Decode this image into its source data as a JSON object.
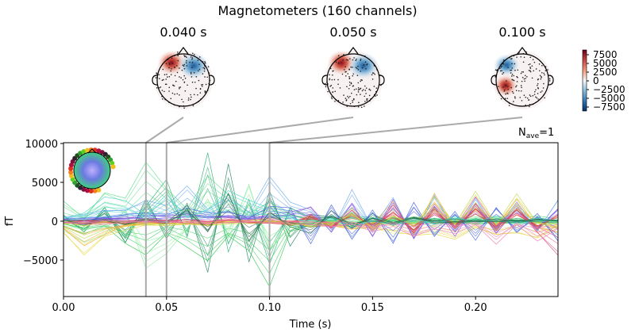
{
  "title": "Magnetometers (160 channels)",
  "topomaps": [
    {
      "time": 0.04,
      "label": "0.040 s",
      "pattern": "red-left-front, blue-right-front"
    },
    {
      "time": 0.05,
      "label": "0.050 s",
      "pattern": "red-left-front, blue-right-front"
    },
    {
      "time": 0.1,
      "label": "0.100 s",
      "pattern": "blue-left-front, red-left-middle"
    }
  ],
  "colorbar": {
    "ticks": [
      "7500",
      "5000",
      "2500",
      "0",
      "−2500",
      "−5000",
      "−7500"
    ],
    "colormap": "RdBu_r",
    "range": [
      -8500,
      8500
    ]
  },
  "nave_label": "N",
  "nave_sub": "ave",
  "nave_value": "=1",
  "chart_data": {
    "type": "line",
    "xlabel": "Time (s)",
    "ylabel": "fT",
    "xlim": [
      0,
      0.24
    ],
    "ylim": [
      -9700,
      10100
    ],
    "xticks": [
      {
        "v": 0,
        "label": "0.00"
      },
      {
        "v": 0.05,
        "label": "0.05"
      },
      {
        "v": 0.1,
        "label": "0.10"
      },
      {
        "v": 0.15,
        "label": "0.15"
      },
      {
        "v": 0.2,
        "label": "0.20"
      }
    ],
    "yticks": [
      {
        "v": 10000,
        "label": "10000"
      },
      {
        "v": 5000,
        "label": "5000"
      },
      {
        "v": 0,
        "label": "0"
      },
      {
        "v": -5000,
        "label": "−5000"
      }
    ],
    "markers": [
      0.04,
      0.05,
      0.1
    ],
    "x": [
      0,
      0.01,
      0.02,
      0.03,
      0.04,
      0.05,
      0.06,
      0.07,
      0.08,
      0.09,
      0.1,
      0.11,
      0.12,
      0.13,
      0.14,
      0.15,
      0.16,
      0.17,
      0.18,
      0.19,
      0.2,
      0.21,
      0.22,
      0.23,
      0.24
    ],
    "series": [
      {
        "color": "#5fe08a",
        "values": [
          2500,
          500,
          4000,
          3000,
          8000,
          4500,
          1500,
          6000,
          3500,
          1000,
          2500,
          800,
          300,
          200,
          600,
          400,
          300,
          500,
          300,
          200,
          400,
          600,
          300,
          500,
          200
        ]
      },
      {
        "color": "#2fb070",
        "values": [
          1000,
          -1500,
          2000,
          -3000,
          2000,
          5500,
          -2000,
          9000,
          -4000,
          3000,
          -6000,
          2000,
          500,
          -300,
          1000,
          -500,
          300,
          -400,
          200,
          -300,
          100,
          -200,
          300,
          -100,
          200
        ]
      },
      {
        "color": "#1d8a5a",
        "values": [
          0,
          -800,
          1500,
          -2500,
          3000,
          -2000,
          2500,
          -6500,
          7000,
          -5000,
          4000,
          -3000,
          800,
          600,
          -900,
          700,
          -400,
          300,
          -200,
          100,
          -300,
          200,
          -100,
          300,
          -200
        ]
      },
      {
        "color": "#33cc55",
        "values": [
          -500,
          -1500,
          -800,
          -2500,
          -4000,
          -1500,
          -3000,
          -5000,
          -2000,
          -3500,
          -8000,
          -1500,
          -600,
          -200,
          -500,
          -300,
          -100,
          -400,
          -200,
          -300,
          -100,
          -200,
          -300,
          -100,
          -200
        ]
      },
      {
        "color": "#8fefa0",
        "values": [
          -1000,
          -2500,
          -1500,
          1500,
          -6000,
          -4000,
          -1000,
          3000,
          -2000,
          5000,
          -4000,
          -800,
          -300,
          -200,
          -100,
          -300,
          -500,
          -200,
          -400,
          -100,
          -300,
          -200,
          -100,
          -300,
          -200
        ]
      },
      {
        "color": "#e8d84a",
        "values": [
          -1500,
          -4500,
          -2000,
          -1000,
          -700,
          -500,
          -300,
          -400,
          -200,
          -300,
          -100,
          -200,
          -800,
          -600,
          -1200,
          -900,
          -1500,
          -2000,
          -1500,
          -2500,
          -1000,
          -2000,
          -1500,
          -2500,
          -800
        ]
      },
      {
        "color": "#f0a830",
        "values": [
          -800,
          -3000,
          -1500,
          -600,
          -400,
          -300,
          -200,
          -300,
          -100,
          -200,
          -100,
          -300,
          -500,
          -400,
          -800,
          -600,
          2500,
          -1500,
          3500,
          -1000,
          2000,
          -800,
          3000,
          -600,
          -1500
        ]
      },
      {
        "color": "#6aa8f0",
        "values": [
          300,
          800,
          1200,
          1500,
          2500,
          1800,
          4500,
          1500,
          3000,
          1000,
          6000,
          2500,
          1500,
          -1500,
          4000,
          -1000,
          3000,
          -2000,
          3500,
          -1500,
          3000,
          -1000,
          2500,
          -1500,
          3000
        ]
      },
      {
        "color": "#4060e0",
        "values": [
          200,
          300,
          500,
          700,
          1000,
          800,
          1500,
          900,
          1200,
          600,
          2000,
          1500,
          -3000,
          2000,
          -2500,
          1500,
          -3000,
          2500,
          -2000,
          1500,
          -2500,
          2000,
          -1500,
          1000,
          -2500
        ]
      },
      {
        "color": "#8a50e0",
        "values": [
          100,
          200,
          300,
          400,
          600,
          500,
          700,
          500,
          800,
          400,
          900,
          1200,
          2000,
          -1500,
          2500,
          -2000,
          2800,
          -2500,
          2000,
          -1800,
          2500,
          -1500,
          2000,
          -1200,
          1500
        ]
      },
      {
        "color": "#e05080",
        "values": [
          0,
          -100,
          100,
          -200,
          200,
          -100,
          100,
          -200,
          300,
          -100,
          200,
          -300,
          800,
          -600,
          1500,
          -1200,
          2000,
          -1500,
          2500,
          -1000,
          3000,
          -800,
          2000,
          -1500,
          -4500
        ]
      },
      {
        "color": "#e04030",
        "values": [
          -100,
          -200,
          -100,
          -300,
          -200,
          -100,
          -200,
          -300,
          -100,
          -200,
          -300,
          -500,
          600,
          -900,
          1200,
          -800,
          1000,
          -1500,
          1500,
          -1000,
          1800,
          -1200,
          1500,
          -1000,
          800
        ]
      },
      {
        "color": "#c8d84a",
        "values": [
          -200,
          -600,
          -300,
          -400,
          -300,
          -500,
          -200,
          -400,
          -300,
          -200,
          -100,
          -400,
          -300,
          -500,
          1500,
          -1200,
          800,
          -600,
          3000,
          -400,
          4000,
          -500,
          3500,
          -300,
          -800
        ]
      },
      {
        "color": "#4ad8c8",
        "values": [
          500,
          1200,
          3000,
          2500,
          1000,
          3500,
          500,
          1500,
          4000,
          3000,
          1500,
          500,
          -400,
          600,
          -800,
          300,
          -500,
          200,
          -300,
          500,
          -200,
          400,
          -300,
          200,
          -100
        ]
      },
      {
        "color": "#2a6a4a",
        "values": [
          0,
          -300,
          200,
          -400,
          300,
          -200,
          2000,
          -1500,
          3500,
          -2500,
          1500,
          -600,
          -1500,
          1200,
          -800,
          600,
          -400,
          300,
          -200,
          100,
          -100,
          200,
          -100,
          100,
          0
        ]
      },
      {
        "color": "#f07ab0",
        "values": [
          -100,
          -300,
          -200,
          -100,
          -200,
          -100,
          -300,
          -200,
          -100,
          -200,
          -100,
          -200,
          -300,
          -800,
          -400,
          -1500,
          -600,
          -2000,
          -800,
          -1500,
          -600,
          -3000,
          -400,
          -2500,
          -1200
        ]
      }
    ]
  }
}
